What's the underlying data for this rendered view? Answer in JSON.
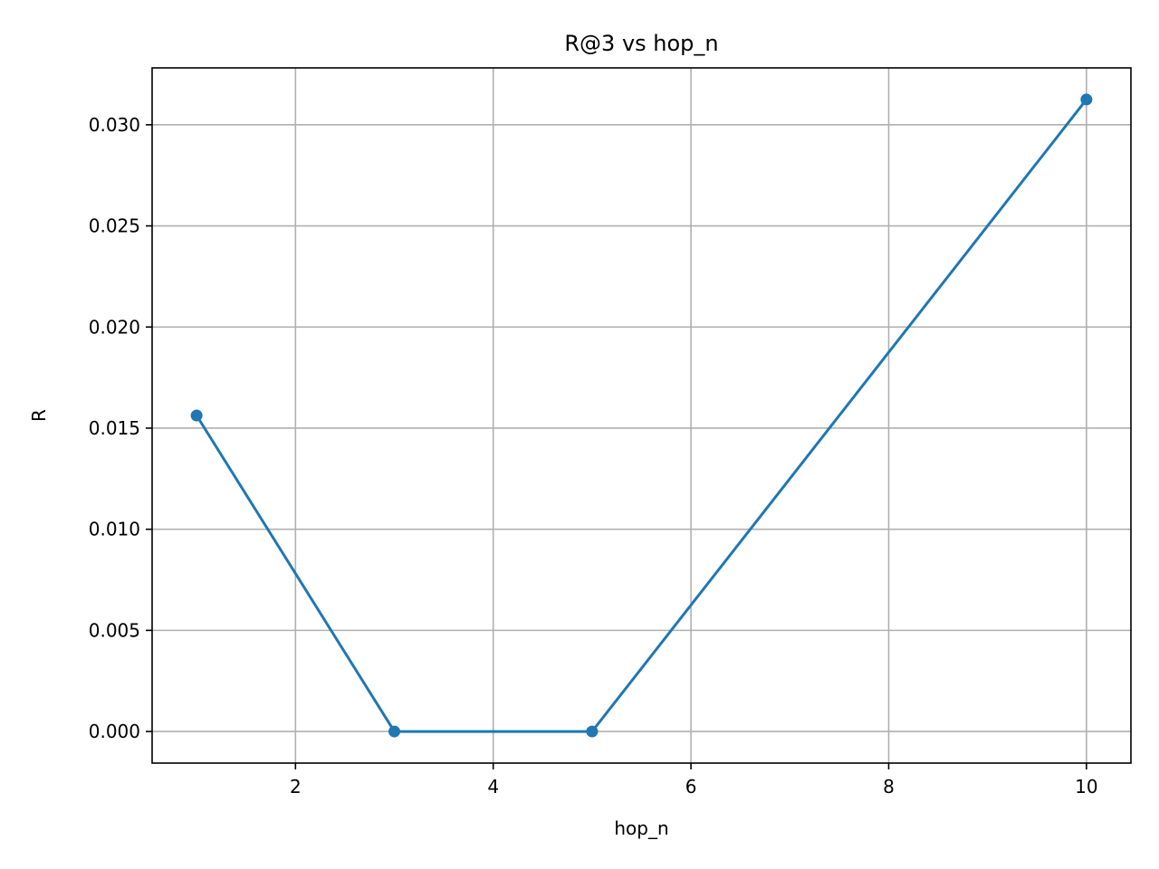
{
  "chart_data": {
    "type": "line",
    "title": "R@3 vs hop_n",
    "xlabel": "hop_n",
    "ylabel": "R",
    "x": [
      1,
      3,
      5,
      10
    ],
    "series": [
      {
        "values": [
          0.015625,
          0.0,
          0.0,
          0.03125
        ],
        "color": "#1f77b4",
        "marker": "circle"
      }
    ],
    "xlim": [
      0.55,
      10.45
    ],
    "ylim": [
      -0.0015625,
      0.0328125
    ],
    "xticks": [
      2,
      4,
      6,
      8,
      10
    ],
    "xtick_labels": [
      "2",
      "4",
      "6",
      "8",
      "10"
    ],
    "yticks": [
      0.0,
      0.005,
      0.01,
      0.015,
      0.02,
      0.025,
      0.03
    ],
    "ytick_labels": [
      "0.000",
      "0.005",
      "0.010",
      "0.015",
      "0.020",
      "0.025",
      "0.030"
    ],
    "grid": true,
    "grid_color": "#b0b0b0",
    "axes_color": "#000000"
  }
}
